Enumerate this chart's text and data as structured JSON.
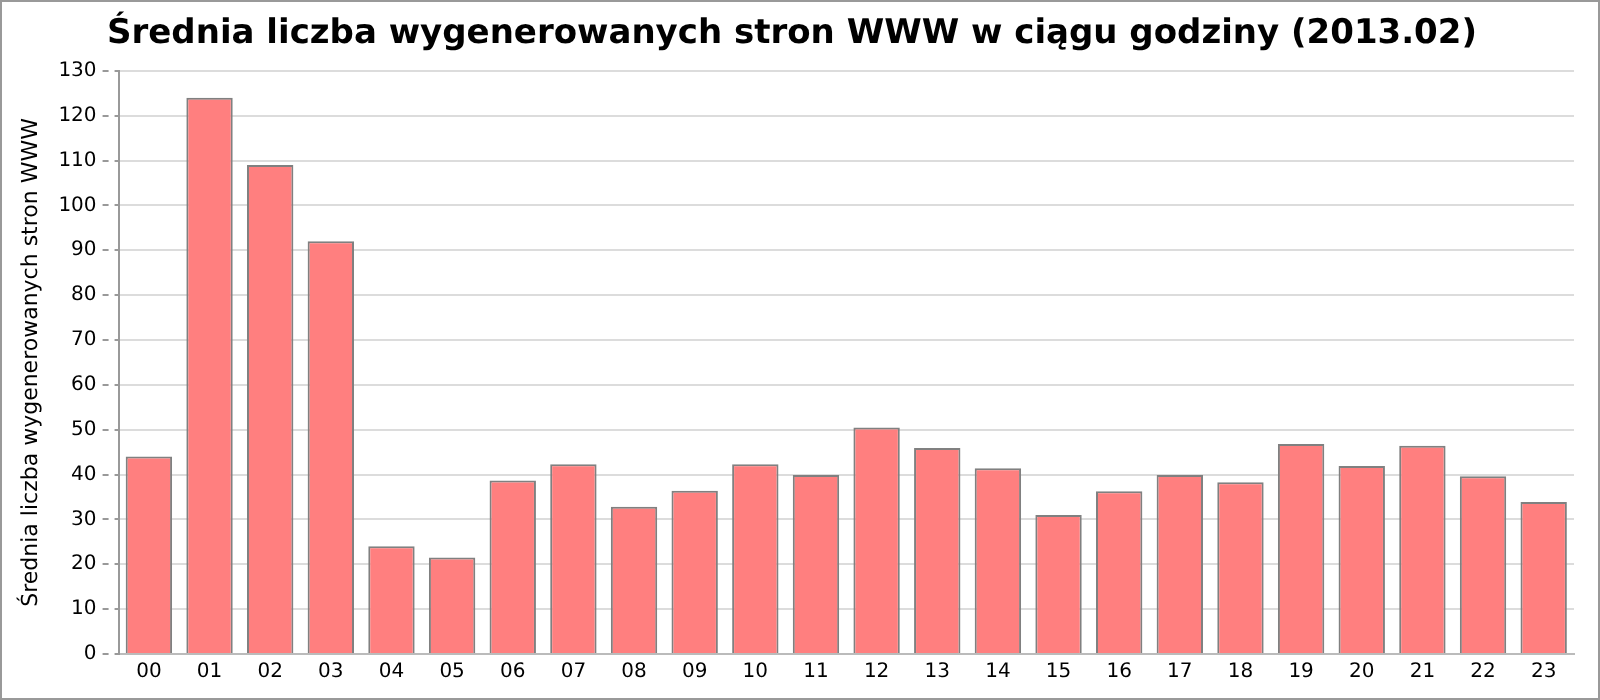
{
  "chart_data": {
    "type": "bar",
    "title": "Średnia liczba wygenerowanych stron WWW w ciągu godziny (2013.02)",
    "ylabel": "Średnia liczba wygenerowanych stron WWW",
    "categories": [
      "00",
      "01",
      "02",
      "03",
      "04",
      "05",
      "06",
      "07",
      "08",
      "09",
      "10",
      "11",
      "12",
      "13",
      "14",
      "15",
      "16",
      "17",
      "18",
      "19",
      "20",
      "21",
      "22",
      "23"
    ],
    "values": [
      44,
      124,
      109,
      92,
      24,
      21.5,
      38.7,
      42.3,
      32.8,
      36.4,
      42.3,
      39.9,
      50.5,
      45.9,
      41.4,
      31,
      36.3,
      39.9,
      38.3,
      46.8,
      41.9,
      46.4,
      39.6,
      33.9
    ],
    "color": "#ff7f7f",
    "ylim": [
      0,
      130
    ],
    "yticks": [
      0,
      10,
      20,
      30,
      40,
      50,
      60,
      70,
      80,
      90,
      100,
      110,
      120,
      130
    ],
    "grid": "y",
    "legend": false
  }
}
